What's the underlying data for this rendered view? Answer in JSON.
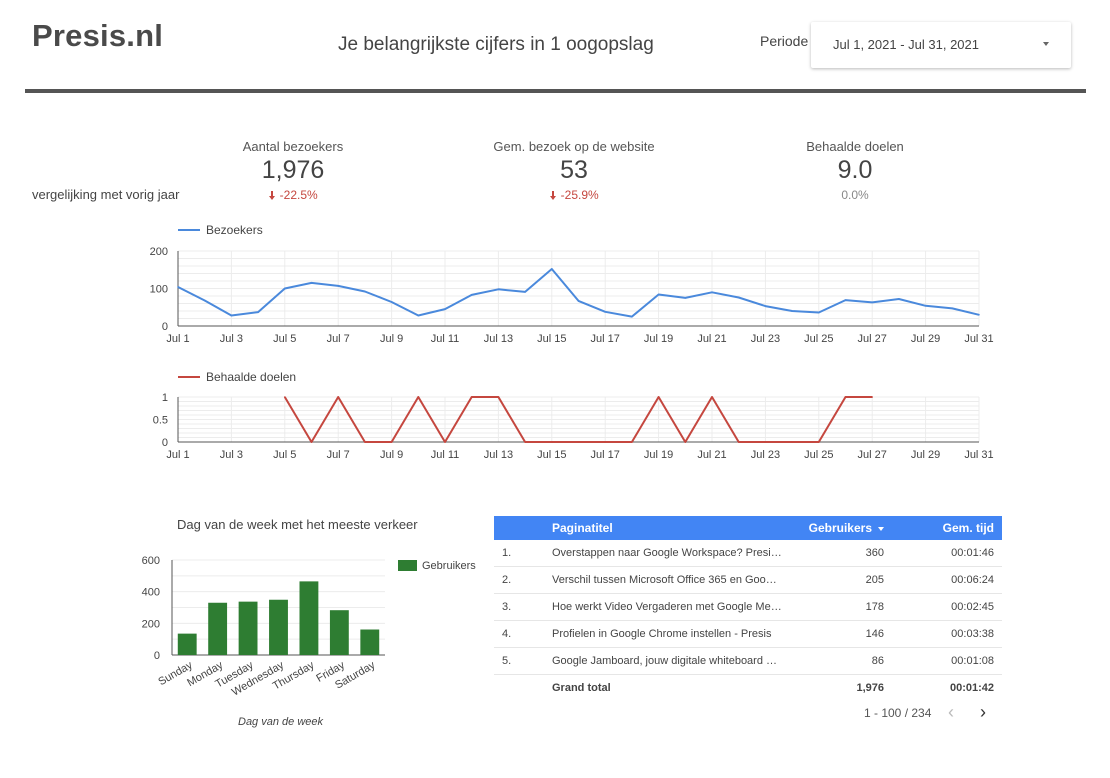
{
  "header": {
    "brand": "Presis.nl",
    "subtitle": "Je belangrijkste cijfers in 1 oogopslag",
    "period_label": "Periode",
    "date_range": "Jul 1, 2021 - Jul 31, 2021"
  },
  "kpis": {
    "compare_label": "vergelijking met vorig jaar",
    "items": [
      {
        "label": "Aantal bezoekers",
        "value": "1,976",
        "delta": "-22.5%"
      },
      {
        "label": "Gem. bezoek op de website",
        "value": "53",
        "delta": "-25.9%"
      },
      {
        "label": "Behaalde doelen",
        "value": "9.0",
        "delta": "0.0%"
      }
    ]
  },
  "colors": {
    "blue": "#4a89dc",
    "red": "#c5473f",
    "green": "#2e7d32",
    "table_header": "#4285f4"
  },
  "chart_data": [
    {
      "type": "line",
      "series": [
        {
          "name": "Bezoekers",
          "values": [
            104,
            68,
            28,
            37,
            100,
            115,
            107,
            92,
            64,
            28,
            45,
            83,
            98,
            91,
            152,
            67,
            38,
            25,
            84,
            75,
            90,
            76,
            53,
            40,
            36,
            69,
            63,
            72,
            54,
            47,
            30
          ]
        }
      ],
      "x": [
        1,
        2,
        3,
        4,
        5,
        6,
        7,
        8,
        9,
        10,
        11,
        12,
        13,
        14,
        15,
        16,
        17,
        18,
        19,
        20,
        21,
        22,
        23,
        24,
        25,
        26,
        27,
        28,
        29,
        30,
        31
      ],
      "x_tick_labels": [
        "Jul 1",
        "Jul 3",
        "Jul 5",
        "Jul 7",
        "Jul 9",
        "Jul 11",
        "Jul 13",
        "Jul 15",
        "Jul 17",
        "Jul 19",
        "Jul 21",
        "Jul 23",
        "Jul 25",
        "Jul 27",
        "Jul 29",
        "Jul 31"
      ],
      "y_ticks": [
        "0",
        "100",
        "200"
      ],
      "ylim": [
        0,
        200
      ],
      "legend": "top-left",
      "grid": true
    },
    {
      "type": "line",
      "series": [
        {
          "name": "Behaalde doelen",
          "values": [
            null,
            null,
            null,
            null,
            1,
            0,
            1,
            0,
            0,
            1,
            0,
            1,
            1,
            0,
            0,
            0,
            0,
            0,
            1,
            0,
            1,
            0,
            0,
            0,
            0,
            1,
            1,
            null,
            null,
            null,
            null
          ]
        }
      ],
      "x": [
        1,
        2,
        3,
        4,
        5,
        6,
        7,
        8,
        9,
        10,
        11,
        12,
        13,
        14,
        15,
        16,
        17,
        18,
        19,
        20,
        21,
        22,
        23,
        24,
        25,
        26,
        27,
        28,
        29,
        30,
        31
      ],
      "x_tick_labels": [
        "Jul 1",
        "Jul 3",
        "Jul 5",
        "Jul 7",
        "Jul 9",
        "Jul 11",
        "Jul 13",
        "Jul 15",
        "Jul 17",
        "Jul 19",
        "Jul 21",
        "Jul 23",
        "Jul 25",
        "Jul 27",
        "Jul 29",
        "Jul 31"
      ],
      "y_ticks": [
        "0",
        "0.5",
        "1"
      ],
      "ylim": [
        0,
        1
      ],
      "legend": "top-left",
      "grid": true
    },
    {
      "type": "bar",
      "title": "Dag van de week met het meeste verkeer",
      "xlabel": "Dag van de week",
      "categories": [
        "Sunday",
        "Monday",
        "Tuesday",
        "Wednesday",
        "Thursday",
        "Friday",
        "Saturday"
      ],
      "series": [
        {
          "name": "Gebruikers",
          "values": [
            135,
            330,
            337,
            349,
            465,
            283,
            161
          ]
        }
      ],
      "y_ticks": [
        "0",
        "200",
        "400",
        "600"
      ],
      "ylim": [
        0,
        600
      ],
      "legend": "right",
      "grid": true
    }
  ],
  "table": {
    "columns": [
      "Paginatitel",
      "Gebruikers",
      "Gem. tijd"
    ],
    "rows": [
      {
        "idx": "1.",
        "title": "Overstappen naar Google Workspace? Presi…",
        "users": "360",
        "time": "00:01:46"
      },
      {
        "idx": "2.",
        "title": "Verschil tussen Microsoft Office 365 en Goo…",
        "users": "205",
        "time": "00:06:24"
      },
      {
        "idx": "3.",
        "title": "Hoe werkt Video Vergaderen met Google Me…",
        "users": "178",
        "time": "00:02:45"
      },
      {
        "idx": "4.",
        "title": "Profielen in Google Chrome instellen - Presis",
        "users": "146",
        "time": "00:03:38"
      },
      {
        "idx": "5.",
        "title": "Google Jamboard, jouw digitale whiteboard …",
        "users": "86",
        "time": "00:01:08"
      }
    ],
    "total": {
      "label": "Grand total",
      "users": "1,976",
      "time": "00:01:42"
    },
    "pagination": "1 - 100 / 234",
    "prev_icon": "‹",
    "next_icon": "›"
  }
}
